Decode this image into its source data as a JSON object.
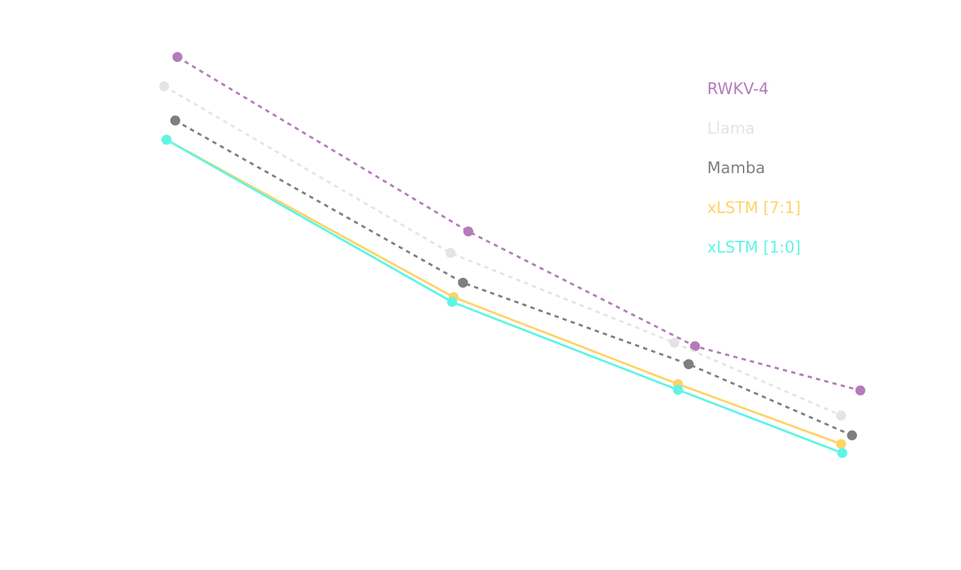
{
  "chart_data": {
    "type": "line",
    "xscale": "log",
    "xlim": [
      100,
      1700
    ],
    "ylim": [
      8,
      24
    ],
    "legend": "upper right",
    "series": [
      {
        "name": "RWKV-4",
        "color": "#b47cba",
        "dashed": true,
        "x": [
          129,
          369,
          837,
          1521
        ],
        "values": [
          23.11,
          17.67,
          14.09,
          12.71
        ]
      },
      {
        "name": "Llama",
        "color": "#e4e4e4",
        "dashed": true,
        "x": [
          123,
          346,
          777,
          1419
        ],
        "values": [
          22.2,
          17.0,
          14.2,
          11.93
        ]
      },
      {
        "name": "Mamba",
        "color": "#7f7f7f",
        "dashed": true,
        "x": [
          128,
          362,
          818,
          1476
        ],
        "values": [
          21.13,
          16.07,
          13.53,
          11.31
        ]
      },
      {
        "name": "xLSTM [7:1]",
        "color": "#fdd466",
        "dashed": false,
        "x": [
          124,
          350,
          787,
          1419
        ],
        "values": [
          20.53,
          15.62,
          12.91,
          11.04
        ]
      },
      {
        "name": "xLSTM [1:0]",
        "color": "#5ef5e6",
        "dashed": false,
        "x": [
          124,
          348,
          787,
          1425
        ],
        "values": [
          20.53,
          15.47,
          12.73,
          10.76
        ]
      }
    ]
  }
}
